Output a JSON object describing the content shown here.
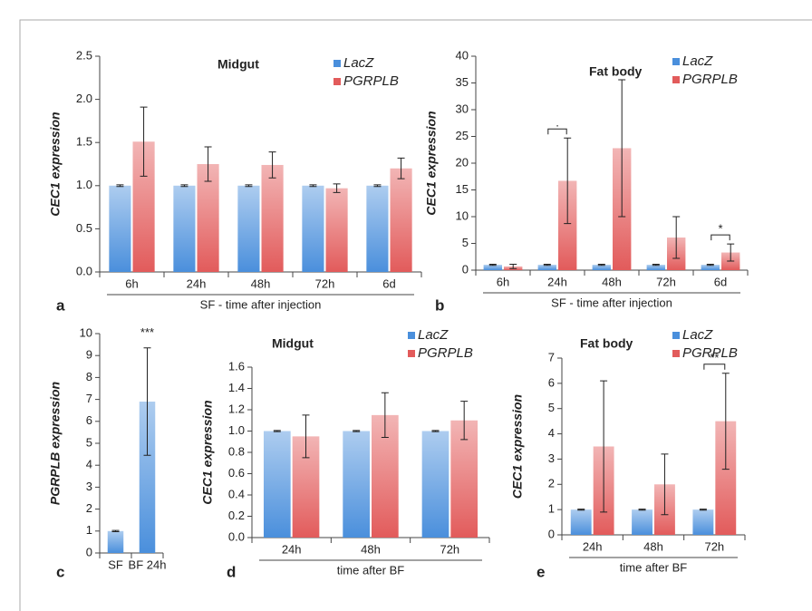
{
  "chart_data": [
    {
      "type": "bar",
      "panel_label": "a",
      "title": "Midgut",
      "y_label": "CEC1 expression",
      "x_label": "SF - time after injection",
      "categories": [
        "6h",
        "24h",
        "48h",
        "72h",
        "6d"
      ],
      "series": [
        {
          "name": "LacZ",
          "color": "#4a8fdc",
          "values": [
            1,
            1,
            1,
            1,
            1
          ],
          "errors": [
            0.01,
            0.01,
            0.01,
            0.01,
            0.01
          ]
        },
        {
          "name": "PGRPLB",
          "color": "#e25b5b",
          "values": [
            1.51,
            1.25,
            1.24,
            0.97,
            1.2
          ],
          "errors": [
            0.4,
            0.2,
            0.15,
            0.05,
            0.12
          ]
        }
      ],
      "ylim": [
        0,
        2.5
      ],
      "yticks": [
        {
          "value": 0,
          "label": "0.0"
        },
        0.5,
        {
          "value": 1,
          "label": "1.0"
        },
        1.5,
        {
          "value": 2,
          "label": "2.0"
        },
        2.5
      ],
      "legend": "top right"
    },
    {
      "type": "bar",
      "panel_label": "b",
      "title": "Fat body",
      "y_label": "CEC1 expression",
      "x_label": "SF - time after injection",
      "categories": [
        "6h",
        "24h",
        "48h",
        "72h",
        "6d"
      ],
      "series": [
        {
          "name": "LacZ",
          "color": "#4a8fdc",
          "values": [
            1,
            1,
            1,
            1,
            1
          ],
          "errors": [
            0.1,
            0.1,
            0.1,
            0.1,
            0.1
          ]
        },
        {
          "name": "PGRPLB",
          "color": "#e25b5b",
          "values": [
            0.7,
            16.7,
            22.8,
            6.1,
            3.3
          ],
          "errors": [
            0.4,
            8,
            12.8,
            3.9,
            1.6
          ]
        }
      ],
      "ylim": [
        0,
        40
      ],
      "yticks": [
        0,
        5,
        10,
        15,
        20,
        25,
        30,
        35,
        40
      ],
      "annotations": [
        {
          "text": ".",
          "category": "24h"
        },
        {
          "text": "*",
          "category": "6d"
        }
      ],
      "legend": "top right"
    },
    {
      "type": "bar",
      "panel_label": "c",
      "y_label": "PGRPLB expression",
      "categories": [
        "SF",
        "BF 24h"
      ],
      "series": [
        {
          "color": "#4a8fdc",
          "values": [
            1,
            6.9
          ],
          "errors": [
            0.03,
            2.45
          ]
        }
      ],
      "ylim": [
        0,
        10
      ],
      "yticks": [
        0,
        1,
        2,
        3,
        4,
        5,
        6,
        7,
        8,
        9,
        10
      ],
      "annotations": [
        {
          "text": "***",
          "category": "BF 24h"
        }
      ]
    },
    {
      "type": "bar",
      "panel_label": "d",
      "title": "Midgut",
      "y_label": "CEC1 expression",
      "x_label": "time after BF",
      "categories": [
        "24h",
        "48h",
        "72h"
      ],
      "series": [
        {
          "name": "LacZ",
          "color": "#4a8fdc",
          "values": [
            1,
            1,
            1
          ],
          "errors": [
            0.005,
            0.005,
            0.005
          ]
        },
        {
          "name": "PGRPLB",
          "color": "#e25b5b",
          "values": [
            0.95,
            1.15,
            1.1
          ],
          "errors": [
            0.2,
            0.21,
            0.18
          ]
        }
      ],
      "ylim": [
        0,
        1.6
      ],
      "yticks": [
        {
          "value": 0,
          "label": "0.0"
        },
        0.2,
        0.4,
        0.6,
        0.8,
        {
          "value": 1,
          "label": "1.0"
        },
        1.2,
        1.4,
        1.6
      ],
      "legend": "top right"
    },
    {
      "type": "bar",
      "panel_label": "e",
      "title": "Fat body",
      "y_label": "CEC1 expression",
      "x_label": "time after BF",
      "categories": [
        "24h",
        "48h",
        "72h"
      ],
      "series": [
        {
          "name": "LacZ",
          "color": "#4a8fdc",
          "values": [
            1,
            1,
            1
          ],
          "errors": [
            0.02,
            0.02,
            0.02
          ]
        },
        {
          "name": "PGRPLB",
          "color": "#e25b5b",
          "values": [
            3.5,
            2,
            4.5
          ],
          "errors": [
            2.6,
            1.2,
            1.9
          ]
        }
      ],
      "ylim": [
        0,
        7
      ],
      "yticks": [
        0,
        1,
        2,
        3,
        4,
        5,
        6,
        7
      ],
      "annotations": [
        {
          "text": "**",
          "category": "72h"
        }
      ],
      "legend": "top right"
    }
  ]
}
